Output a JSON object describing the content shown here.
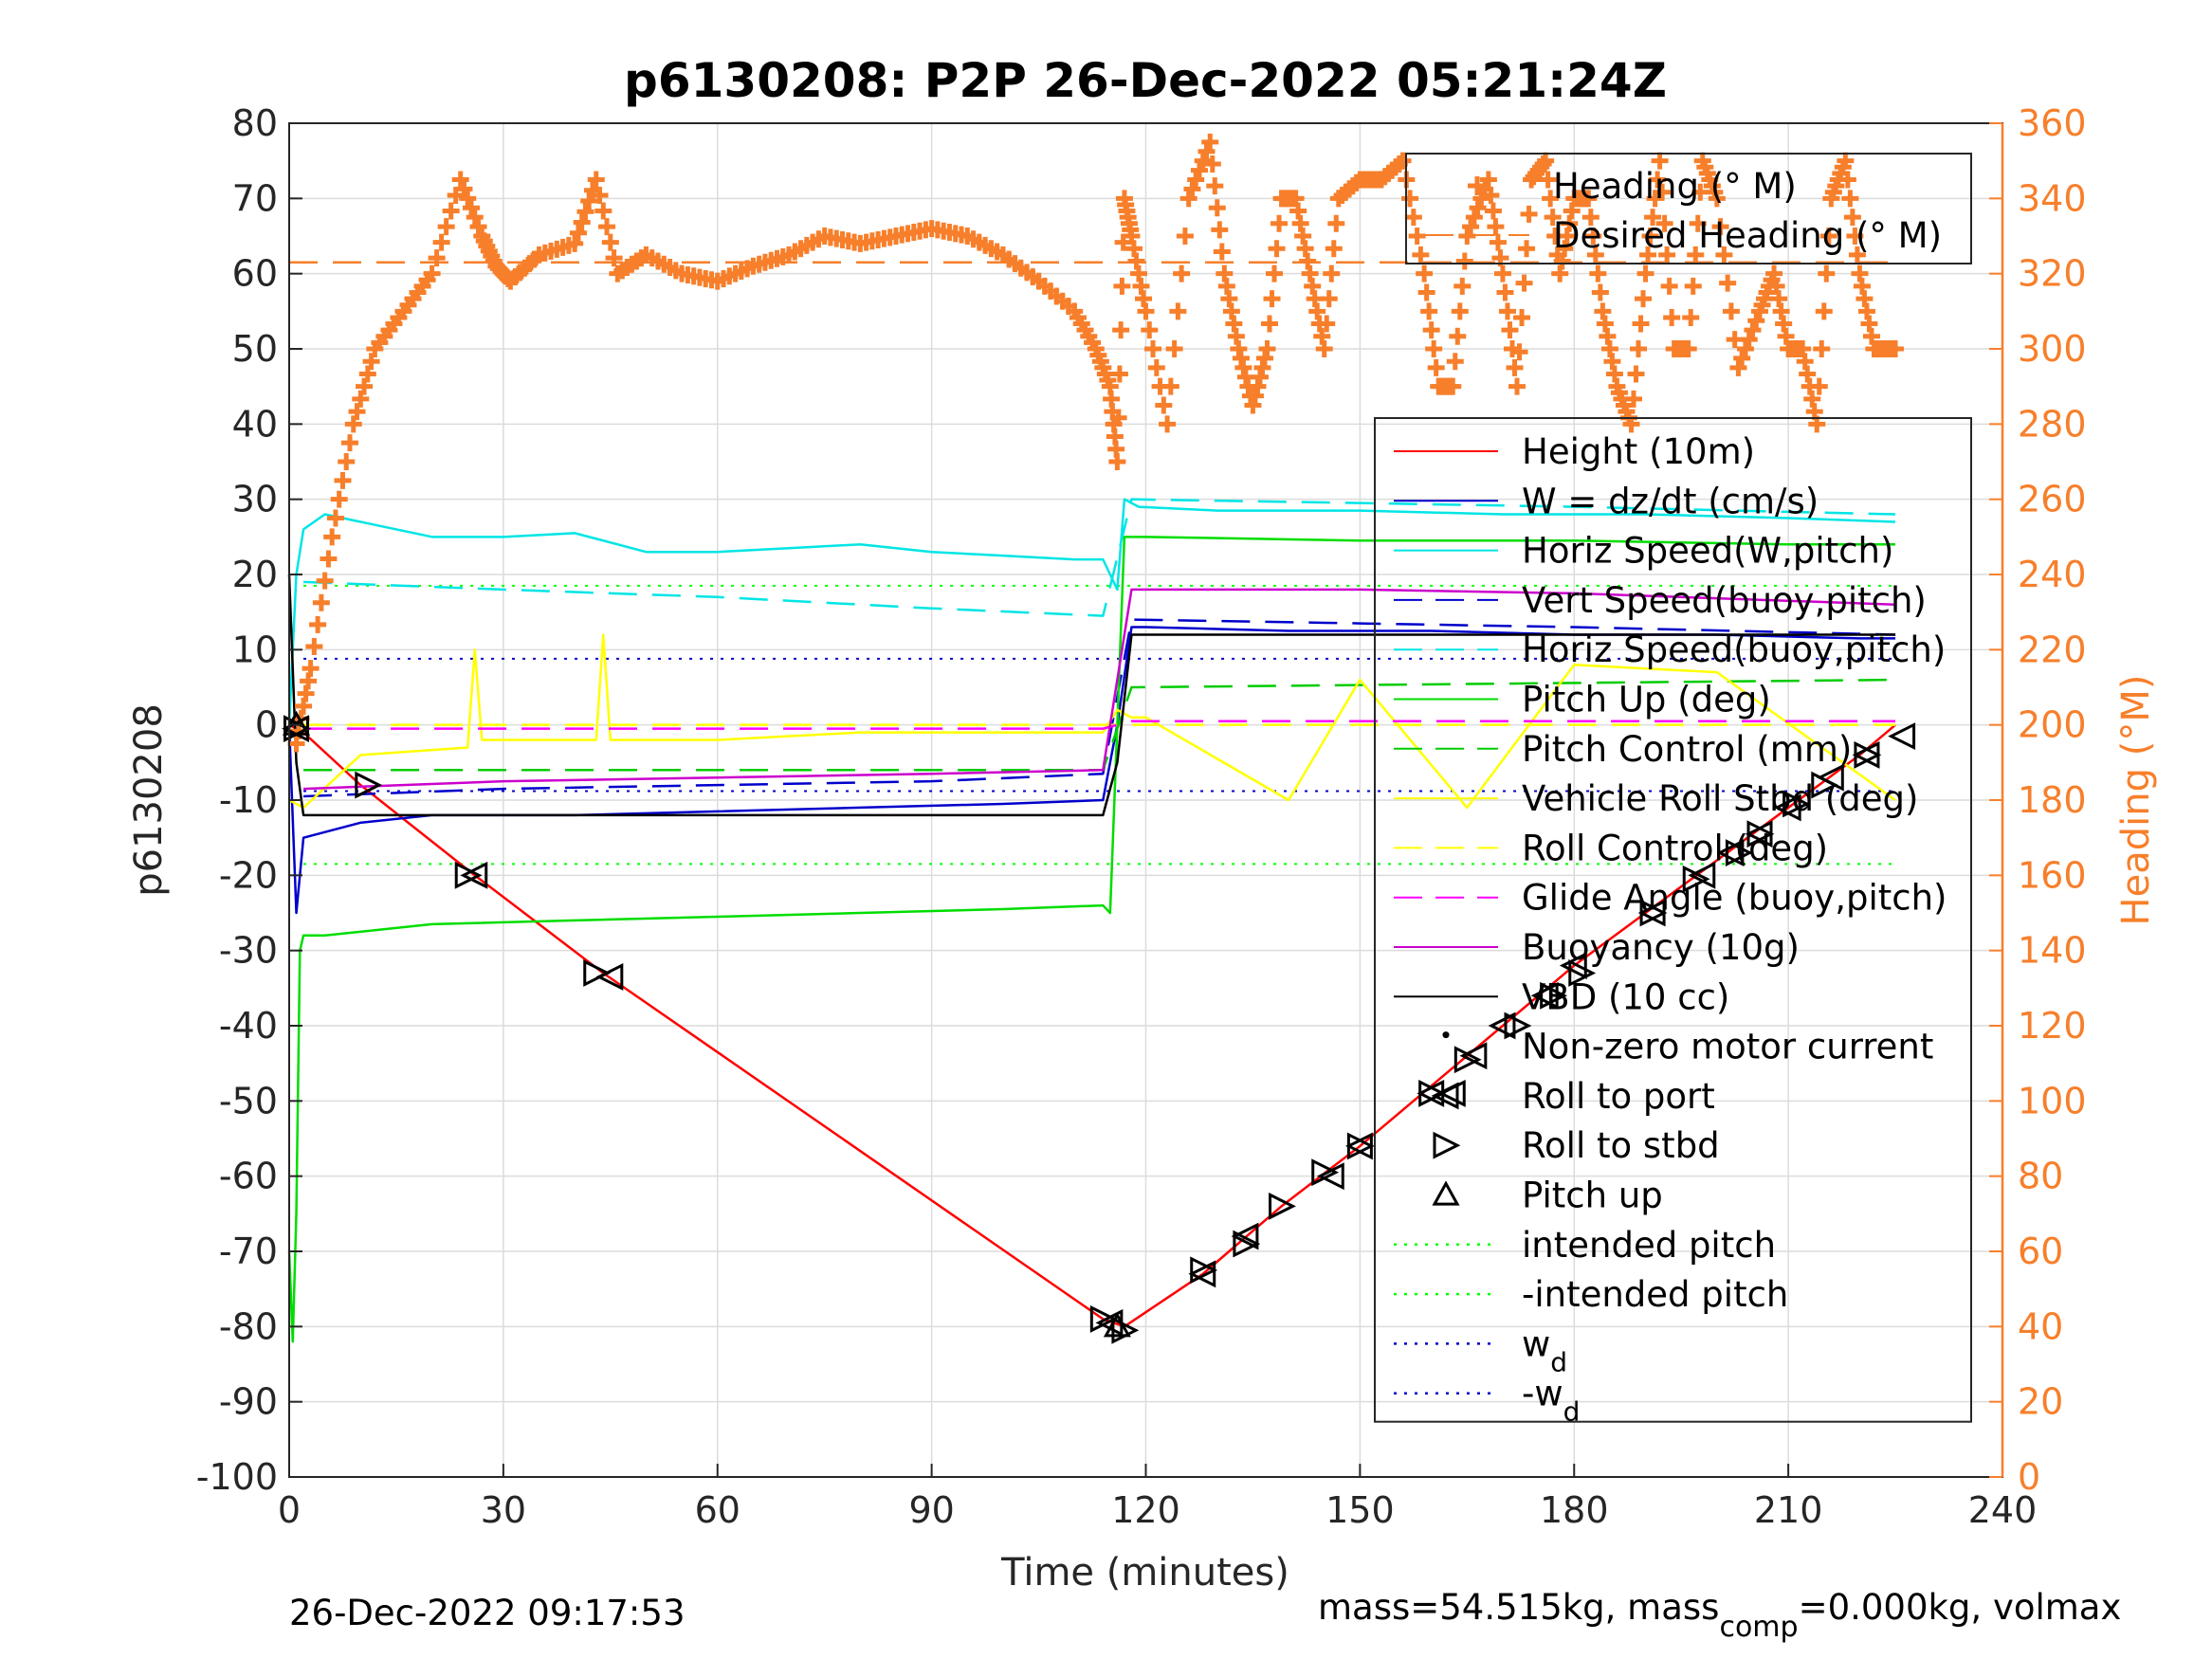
{
  "chart_data": {
    "type": "line",
    "title": "p6130208: P2P 26-Dec-2022 05:21:24Z",
    "xlabel": "Time (minutes)",
    "ylabel": "p6130208",
    "y2label": "Heading (°M)",
    "xlim": [
      0,
      240
    ],
    "ylim": [
      -100,
      80
    ],
    "y2lim": [
      0,
      360
    ],
    "xticks": [
      "0",
      "30",
      "60",
      "90",
      "120",
      "150",
      "180",
      "210",
      "240"
    ],
    "yticks": [
      "-100",
      "-90",
      "-80",
      "-70",
      "-60",
      "-50",
      "-40",
      "-30",
      "-20",
      "-10",
      "0",
      "10",
      "20",
      "30",
      "40",
      "50",
      "60",
      "70",
      "80"
    ],
    "y2ticks": [
      "0",
      "20",
      "40",
      "60",
      "80",
      "100",
      "120",
      "140",
      "160",
      "180",
      "200",
      "220",
      "240",
      "260",
      "280",
      "300",
      "320",
      "340",
      "360"
    ],
    "grid": true,
    "legend_top": {
      "placement": "top-right",
      "entries": [
        {
          "label": "Heading (° M)",
          "color": "#f77f2b",
          "style": "plus"
        },
        {
          "label": "Desired Heading (° M)",
          "color": "#f77f2b",
          "style": "dashed"
        }
      ]
    },
    "legend_main": {
      "placement": "right",
      "entries": [
        {
          "label": "Height (10m)",
          "color": "#ff0000",
          "style": "solid"
        },
        {
          "label": "W = dz/dt (cm/s)",
          "color": "#0000cc",
          "style": "solid"
        },
        {
          "label": "Horiz Speed(W,pitch)",
          "color": "#00e5e5",
          "style": "solid"
        },
        {
          "label": "Vert Speed(buoy,pitch)",
          "color": "#0000cc",
          "style": "dashed"
        },
        {
          "label": "Horiz Speed(buoy,pitch)",
          "color": "#00e5e5",
          "style": "dashed"
        },
        {
          "label": "Pitch Up (deg)",
          "color": "#00dd00",
          "style": "solid"
        },
        {
          "label": "Pitch Control (mm)",
          "color": "#00cc00",
          "style": "dashed"
        },
        {
          "label": "Vehicle Roll Stbd (deg)",
          "color": "#ffff00",
          "style": "solid"
        },
        {
          "label": "Roll Control (deg)",
          "color": "#ffff00",
          "style": "dashed"
        },
        {
          "label": "Glide Angle (buoy,pitch)",
          "color": "#ff00ff",
          "style": "dashed"
        },
        {
          "label": "Buoyancy (10g)",
          "color": "#cc00cc",
          "style": "solid"
        },
        {
          "label": "VBD (10 cc)",
          "color": "#000000",
          "style": "solid"
        },
        {
          "label": "Non-zero motor current",
          "color": "#000000",
          "style": "dot"
        },
        {
          "label": "Roll to port",
          "color": "#000000",
          "style": "tri-left"
        },
        {
          "label": "Roll to stbd",
          "color": "#000000",
          "style": "tri-right"
        },
        {
          "label": "Pitch up",
          "color": "#000000",
          "style": "tri-up"
        },
        {
          "label": "intended pitch",
          "color": "#00ff00",
          "style": "dotted"
        },
        {
          "label": "-intended pitch",
          "color": "#00ff00",
          "style": "dotted"
        },
        {
          "label": "w",
          "sub": "d",
          "color": "#0000cc",
          "style": "dotted"
        },
        {
          "label": "-w",
          "sub": "d",
          "color": "#0000cc",
          "style": "dotted"
        }
      ]
    },
    "series": [
      {
        "name": "Height (10m)",
        "color": "#ff0000",
        "axis": "left",
        "x": [
          0,
          2,
          10,
          26,
          44,
          114,
          117,
          128,
          139,
          150,
          160,
          170,
          180,
          190,
          200,
          210,
          220,
          225
        ],
        "y": [
          0,
          -1,
          -8,
          -20,
          -33,
          -79,
          -80,
          -73,
          -64,
          -56,
          -48,
          -40,
          -32,
          -25,
          -18,
          -11,
          -4,
          0
        ]
      },
      {
        "name": "W = dz/dt (cm/s)",
        "color": "#0000cc",
        "axis": "left",
        "x": [
          0,
          1,
          2,
          10,
          20,
          40,
          60,
          80,
          100,
          114,
          116,
          118,
          120,
          140,
          160,
          180,
          200,
          220,
          225
        ],
        "y": [
          0,
          -25,
          -15,
          -13,
          -12,
          -12,
          -11.5,
          -11,
          -10.5,
          -10,
          0,
          13,
          13,
          12.5,
          12.5,
          12,
          12,
          11.5,
          11.5
        ]
      },
      {
        "name": "Horiz Speed(W,pitch)",
        "color": "#00e5e5",
        "axis": "left",
        "x": [
          0,
          1,
          2,
          5,
          10,
          20,
          30,
          40,
          50,
          60,
          70,
          80,
          90,
          100,
          110,
          114,
          116,
          117,
          119,
          130,
          150,
          170,
          190,
          210,
          225
        ],
        "y": [
          0,
          20,
          26,
          28,
          27,
          25,
          25,
          25.5,
          23,
          23,
          23.5,
          24,
          23,
          22.5,
          22,
          22,
          18,
          30,
          29,
          28.5,
          28.5,
          28,
          28,
          27.5,
          27
        ]
      },
      {
        "name": "Vert Speed(buoy,pitch)",
        "color": "#0000cc",
        "axis": "left",
        "dash": true,
        "x": [
          2,
          30,
          60,
          90,
          114,
          118,
          150,
          180,
          225
        ],
        "y": [
          -9.5,
          -8.5,
          -8,
          -7.5,
          -6.5,
          14,
          13.5,
          13,
          12
        ]
      },
      {
        "name": "Horiz Speed(buoy,pitch)",
        "color": "#00e5e5",
        "axis": "left",
        "dash": true,
        "x": [
          2,
          30,
          60,
          90,
          114,
          118,
          150,
          180,
          225
        ],
        "y": [
          19,
          18,
          17,
          15.5,
          14.5,
          30,
          29.5,
          29,
          28
        ]
      },
      {
        "name": "Pitch Up (deg)",
        "color": "#00dd00",
        "axis": "left",
        "x": [
          0,
          0.5,
          1,
          1.5,
          2,
          5,
          20,
          40,
          60,
          80,
          100,
          114,
          115,
          116,
          117,
          120,
          150,
          180,
          210,
          225
        ],
        "y": [
          -70,
          -82,
          -65,
          -30,
          -28,
          -28,
          -26.5,
          -26,
          -25.5,
          -25,
          -24.5,
          -24,
          -25,
          0,
          25,
          25,
          24.5,
          24.5,
          24,
          24
        ]
      },
      {
        "name": "Pitch Control (mm)",
        "color": "#00cc00",
        "axis": "left",
        "dash": true,
        "x": [
          2,
          114,
          118,
          225
        ],
        "y": [
          -6,
          -6,
          5,
          6
        ]
      },
      {
        "name": "Vehicle Roll Stbd (deg)",
        "color": "#ffff00",
        "axis": "left",
        "x": [
          0,
          2,
          10,
          25,
          26,
          27,
          43,
          44,
          45,
          60,
          80,
          100,
          114,
          116,
          118,
          120,
          140,
          150,
          165,
          180,
          200,
          225
        ],
        "y": [
          -10,
          -11,
          -4,
          -3,
          10,
          -2,
          -2,
          12,
          -2,
          -2,
          -1,
          -1,
          -1,
          2,
          1,
          1,
          -10,
          6,
          -11,
          8,
          7,
          -10
        ]
      },
      {
        "name": "Roll Control (deg)",
        "color": "#ffff00",
        "axis": "left",
        "dash": true,
        "x": [
          2,
          114,
          118,
          225
        ],
        "y": [
          0,
          0,
          0,
          0
        ]
      },
      {
        "name": "Glide Angle (buoy,pitch)",
        "color": "#ff00ff",
        "axis": "left",
        "dash": true,
        "x": [
          2,
          114,
          118,
          225
        ],
        "y": [
          -0.5,
          -0.5,
          0.5,
          0.5
        ]
      },
      {
        "name": "Buoyancy (10g)",
        "color": "#cc00cc",
        "axis": "left",
        "x": [
          2,
          30,
          60,
          90,
          114,
          118,
          150,
          180,
          225
        ],
        "y": [
          -8.5,
          -7.5,
          -7,
          -6.5,
          -6,
          18,
          18,
          17.5,
          16
        ]
      },
      {
        "name": "VBD (10 cc)",
        "color": "#000000",
        "axis": "left",
        "x": [
          0,
          1,
          2,
          114,
          116,
          118,
          225
        ],
        "y": [
          20,
          -5,
          -12,
          -12,
          -5,
          12,
          12
        ]
      },
      {
        "name": "Heading (° M)",
        "color": "#f77f2b",
        "axis": "right",
        "style": "plus",
        "x": [
          1,
          3,
          6,
          9,
          12,
          16,
          20,
          24,
          27,
          29,
          31,
          35,
          40,
          43,
          46,
          50,
          55,
          60,
          65,
          70,
          75,
          80,
          85,
          90,
          95,
          100,
          105,
          110,
          113,
          115,
          116,
          117,
          118,
          120,
          123,
          126,
          129,
          131,
          133,
          135,
          137,
          139,
          141,
          143,
          145,
          147,
          150,
          153,
          156,
          159,
          161,
          163,
          165,
          168,
          170,
          172,
          174,
          176,
          178,
          180,
          182,
          184,
          186,
          188,
          190,
          192,
          194,
          196,
          198,
          200,
          203,
          206,
          208,
          210,
          212,
          214,
          216,
          218,
          220,
          222,
          225
        ],
        "y": [
          195,
          215,
          250,
          280,
          300,
          310,
          320,
          345,
          330,
          322,
          318,
          325,
          328,
          345,
          320,
          325,
          320,
          318,
          322,
          325,
          330,
          328,
          330,
          332,
          330,
          325,
          318,
          310,
          300,
          290,
          270,
          340,
          330,
          310,
          280,
          340,
          355,
          320,
          300,
          285,
          300,
          340,
          340,
          320,
          300,
          340,
          345,
          345,
          350,
          320,
          290,
          290,
          330,
          345,
          320,
          290,
          345,
          350,
          320,
          340,
          340,
          310,
          290,
          280,
          320,
          350,
          300,
          300,
          350,
          340,
          295,
          310,
          320,
          300,
          300,
          280,
          340,
          350,
          320,
          300,
          300
        ]
      },
      {
        "name": "Desired Heading (° M)",
        "color": "#f77f2b",
        "axis": "right",
        "dash": true,
        "x": [
          0,
          225
        ],
        "y": [
          323,
          323
        ]
      }
    ],
    "reference_lines": [
      {
        "name": "intended pitch",
        "color": "#00ff00",
        "y": 18.5,
        "x": [
          2,
          225
        ]
      },
      {
        "name": "-intended pitch",
        "color": "#00ff00",
        "y": -18.5,
        "x": [
          2,
          225
        ]
      },
      {
        "name": "w_d",
        "color": "#0000cc",
        "y": 8.8,
        "x": [
          2,
          225
        ]
      },
      {
        "name": "-w_d",
        "color": "#0000cc",
        "y": -8.8,
        "x": [
          2,
          225
        ]
      }
    ],
    "markers": {
      "roll_to_port": [
        [
          1,
          -0.5
        ],
        [
          26,
          -20
        ],
        [
          45,
          -33.5
        ],
        [
          115,
          -79.5
        ],
        [
          128,
          -73
        ],
        [
          134,
          -68
        ],
        [
          146,
          -60
        ],
        [
          150,
          -56
        ],
        [
          160,
          -49
        ],
        [
          163,
          -49
        ],
        [
          166,
          -44
        ],
        [
          170,
          -40
        ],
        [
          176,
          -36
        ],
        [
          180,
          -32
        ],
        [
          191,
          -25
        ],
        [
          198,
          -20
        ],
        [
          202,
          -17
        ],
        [
          206,
          -14.5
        ],
        [
          210,
          -11
        ],
        [
          216,
          -7
        ],
        [
          221,
          -4
        ],
        [
          226,
          -1.5
        ]
      ],
      "roll_to_stbd": [
        [
          1,
          -0.5
        ],
        [
          11,
          -8
        ],
        [
          25,
          -20
        ],
        [
          43,
          -33
        ],
        [
          114,
          -79
        ],
        [
          117,
          -80.5
        ],
        [
          128,
          -72.5
        ],
        [
          134,
          -69
        ],
        [
          139,
          -64
        ],
        [
          145,
          -59.5
        ],
        [
          150,
          -56
        ],
        [
          160,
          -49
        ],
        [
          165,
          -44.5
        ],
        [
          172,
          -40
        ],
        [
          177,
          -36
        ],
        [
          181,
          -33
        ],
        [
          191,
          -25
        ],
        [
          197,
          -20.5
        ],
        [
          203,
          -17
        ],
        [
          206,
          -14.5
        ],
        [
          211,
          -10.5
        ],
        [
          215,
          -8
        ],
        [
          221,
          -4
        ]
      ],
      "pitch_up": [
        [
          1,
          0
        ],
        [
          116,
          -80
        ]
      ]
    },
    "footer_left": "26-Dec-2022 09:17:53",
    "footer_right_a": "mass=54.515kg, mass",
    "footer_right_sub": "comp",
    "footer_right_b": "=0.000kg, volmax"
  }
}
